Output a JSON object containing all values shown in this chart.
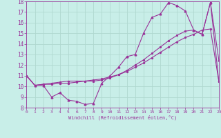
{
  "xlabel": "Windchill (Refroidissement éolien,°C)",
  "bg_color": "#c8eee8",
  "grid_color": "#b0d8d0",
  "line_color": "#993399",
  "xlim": [
    0,
    23
  ],
  "ylim": [
    8,
    18
  ],
  "xticks": [
    0,
    1,
    2,
    3,
    4,
    5,
    6,
    7,
    8,
    9,
    10,
    11,
    12,
    13,
    14,
    15,
    16,
    17,
    18,
    19,
    20,
    21,
    22,
    23
  ],
  "yticks": [
    8,
    9,
    10,
    11,
    12,
    13,
    14,
    15,
    16,
    17,
    18
  ],
  "series1_x": [
    0,
    1,
    2,
    3,
    4,
    5,
    6,
    7,
    8,
    9,
    10,
    11,
    12,
    13,
    14,
    15,
    16,
    17,
    18,
    19,
    20,
    21,
    22,
    23
  ],
  "series1_y": [
    11.0,
    10.1,
    10.1,
    9.0,
    9.4,
    8.7,
    8.6,
    8.3,
    8.4,
    10.3,
    11.0,
    11.8,
    12.8,
    13.0,
    15.0,
    16.5,
    16.8,
    17.9,
    17.6,
    17.1,
    15.3,
    14.9,
    17.9,
    12.5
  ],
  "series2_x": [
    0,
    1,
    2,
    3,
    4,
    5,
    6,
    7,
    8,
    9,
    10,
    11,
    12,
    13,
    14,
    15,
    16,
    17,
    18,
    19,
    20,
    21,
    22,
    23
  ],
  "series2_y": [
    11.0,
    10.1,
    10.2,
    10.3,
    10.4,
    10.5,
    10.5,
    10.5,
    10.6,
    10.7,
    10.9,
    11.1,
    11.4,
    11.8,
    12.2,
    12.7,
    13.2,
    13.7,
    14.2,
    14.6,
    14.9,
    15.3,
    15.4,
    10.5
  ],
  "series3_x": [
    0,
    1,
    2,
    3,
    4,
    5,
    6,
    7,
    8,
    9,
    10,
    11,
    12,
    13,
    14,
    15,
    16,
    17,
    18,
    19,
    20,
    21,
    22,
    23
  ],
  "series3_y": [
    11.0,
    10.1,
    10.2,
    10.2,
    10.3,
    10.3,
    10.4,
    10.5,
    10.5,
    10.6,
    10.8,
    11.1,
    11.5,
    12.0,
    12.5,
    13.1,
    13.7,
    14.3,
    14.8,
    15.2,
    15.3,
    14.9,
    17.9,
    10.5
  ]
}
